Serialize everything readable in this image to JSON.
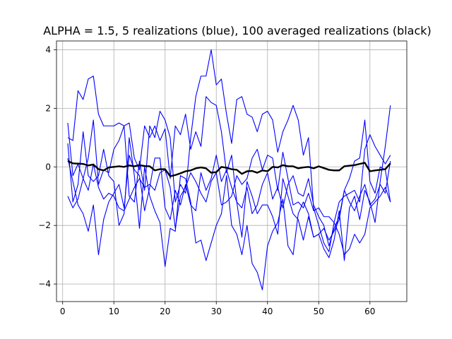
{
  "chart_data": {
    "type": "line",
    "title": "ALPHA = 1.5,    5 realizations (blue), 100 averaged realizations (black)",
    "xlabel": "",
    "ylabel": "",
    "xlim": [
      -1.2,
      67.2
    ],
    "ylim": [
      -4.6,
      4.3
    ],
    "xticks": [
      0,
      10,
      20,
      30,
      40,
      50,
      60
    ],
    "yticks": [
      -4,
      -2,
      0,
      2,
      4
    ],
    "grid": true,
    "legend": "none",
    "colors": {
      "realizations": "#0000ff",
      "average": "#000000",
      "grid": "#b0b0b0"
    },
    "x": [
      1,
      2,
      3,
      4,
      5,
      6,
      7,
      8,
      9,
      10,
      11,
      12,
      13,
      14,
      15,
      16,
      17,
      18,
      19,
      20,
      21,
      22,
      23,
      24,
      25,
      26,
      27,
      28,
      29,
      30,
      31,
      32,
      33,
      34,
      35,
      36,
      37,
      38,
      39,
      40,
      41,
      42,
      43,
      44,
      45,
      46,
      47,
      48,
      49,
      50,
      51,
      52,
      53,
      54,
      55,
      56,
      57,
      58,
      59,
      60,
      61,
      62,
      63,
      64
    ],
    "series": [
      {
        "role": "realization",
        "values": [
          1.5,
          -0.3,
          0.1,
          -0.4,
          0.3,
          1.6,
          -0.6,
          -0.1,
          -0.2,
          0.6,
          0.9,
          1.4,
          -1.0,
          -1.2,
          0.2,
          -0.8,
          1.4,
          1.0,
          1.9,
          1.6,
          1.0,
          -1.2,
          -0.6,
          -0.9,
          1.0,
          2.4,
          3.1,
          3.1,
          4.0,
          2.8,
          3.0,
          1.8,
          0.8,
          2.3,
          2.4,
          1.8,
          1.7,
          1.2,
          1.8,
          1.9,
          1.6,
          0.5,
          1.2,
          1.6,
          2.1,
          1.6,
          0.4,
          1.0,
          -1.4,
          -2.0,
          -2.6,
          -2.9,
          -1.9,
          -1.2,
          -1.0,
          -0.9,
          -0.8,
          -1.2,
          0.6,
          1.1,
          0.7,
          0.4,
          0.1,
          0.4
        ]
      },
      {
        "role": "realization",
        "values": [
          1.0,
          0.9,
          2.6,
          2.3,
          3.0,
          3.1,
          1.8,
          1.4,
          1.4,
          1.4,
          1.5,
          1.4,
          1.5,
          0.3,
          -0.1,
          1.4,
          1.0,
          1.4,
          0.9,
          1.3,
          -0.4,
          1.4,
          1.1,
          1.8,
          0.6,
          1.2,
          0.7,
          2.4,
          2.2,
          2.1,
          1.2,
          -0.2,
          0.4,
          -1.2,
          -1.4,
          -0.7,
          -1.6,
          -1.3,
          -0.6,
          -0.2,
          -1.1,
          -0.7,
          -1.4,
          -0.6,
          -0.3,
          -0.9,
          -1.0,
          -0.4,
          -1.3,
          -1.7,
          -2.0,
          -2.7,
          -2.1,
          -1.7,
          -0.8,
          -1.2,
          -1.5,
          -1.0,
          -0.6,
          -1.3,
          -1.1,
          -0.6,
          -0.9,
          0.2
        ]
      },
      {
        "role": "realization",
        "values": [
          -1.0,
          -1.4,
          -1.1,
          -0.4,
          -0.8,
          0.1,
          -0.7,
          -1.1,
          -0.9,
          -1.0,
          -1.4,
          -1.5,
          -1.1,
          -0.7,
          -0.4,
          -0.7,
          -0.6,
          -0.8,
          -0.2,
          -0.1,
          -0.7,
          -2.1,
          -1.0,
          -0.7,
          -0.2,
          -0.5,
          -0.9,
          -1.2,
          -0.5,
          -0.2,
          -1.3,
          -1.2,
          -1.0,
          -0.3,
          -0.6,
          -0.4,
          0.3,
          0.6,
          -0.1,
          0.4,
          0.3,
          -0.8,
          0.5,
          -0.4,
          -1.3,
          -1.2,
          -1.4,
          -0.9,
          -1.5,
          -1.4,
          -1.7,
          -1.7,
          -1.9,
          -2.3,
          -3.0,
          -2.8,
          -2.3,
          -2.6,
          -2.3,
          -1.4,
          -1.2,
          -1.0,
          -0.7,
          -1.2
        ]
      },
      {
        "role": "realization",
        "values": [
          0.8,
          -1.2,
          -0.6,
          1.2,
          -0.3,
          -0.5,
          -0.3,
          0.6,
          -0.3,
          -0.5,
          -2.0,
          -1.6,
          1.0,
          -0.3,
          -2.1,
          0.0,
          -1.0,
          -1.5,
          -1.9,
          -3.4,
          -2.1,
          -2.2,
          -0.3,
          -0.4,
          -1.2,
          -2.6,
          -2.5,
          -3.2,
          -2.6,
          -2.0,
          -1.6,
          -0.3,
          -2.0,
          -2.3,
          -3.0,
          -2.0,
          -3.3,
          -3.6,
          -4.2,
          -2.7,
          -2.2,
          -1.9,
          -1.1,
          -2.7,
          -3.0,
          -1.6,
          -1.2,
          -1.6,
          -2.4,
          -2.3,
          -2.8,
          -3.1,
          -2.5,
          -1.5,
          -3.2,
          -1.4,
          -1.0,
          -1.8,
          -0.8,
          -1.2,
          -1.9,
          -0.5,
          0.7,
          2.1
        ]
      },
      {
        "role": "realization",
        "values": [
          0.3,
          -0.5,
          -1.3,
          -1.6,
          -2.2,
          -1.3,
          -3.0,
          -1.8,
          -1.2,
          -0.9,
          -0.6,
          -1.4,
          0.4,
          -0.1,
          -0.3,
          -1.5,
          -0.7,
          0.3,
          0.3,
          -1.4,
          -1.8,
          -0.8,
          -1.3,
          -0.6,
          -1.3,
          -1.5,
          -0.2,
          -0.8,
          -0.4,
          0.4,
          -0.5,
          -0.1,
          -0.7,
          -1.2,
          -2.4,
          -0.5,
          -1.0,
          -1.6,
          -1.3,
          -1.3,
          -1.7,
          -2.3,
          -0.4,
          -1.0,
          -1.6,
          -1.8,
          -2.5,
          -1.7,
          -2.4,
          -2.3,
          -2.1,
          -2.5,
          -2.2,
          -1.8,
          -0.8,
          -0.4,
          0.2,
          0.3,
          1.6,
          -0.5,
          -0.9,
          0.0,
          -0.1,
          -1.2
        ]
      },
      {
        "role": "average",
        "values": [
          0.2,
          0.12,
          0.11,
          0.1,
          0.05,
          0.08,
          -0.08,
          -0.12,
          -0.02,
          0.0,
          0.02,
          0.0,
          0.05,
          0.02,
          0.06,
          0.03,
          0.02,
          -0.12,
          -0.08,
          -0.08,
          -0.32,
          -0.28,
          -0.22,
          -0.15,
          -0.12,
          -0.05,
          -0.02,
          -0.05,
          -0.2,
          -0.18,
          0.0,
          -0.03,
          -0.08,
          -0.1,
          -0.24,
          -0.15,
          -0.14,
          -0.2,
          -0.12,
          -0.15,
          0.0,
          -0.02,
          0.06,
          0.02,
          0.02,
          -0.05,
          -0.02,
          0.0,
          -0.05,
          0.02,
          -0.04,
          -0.1,
          -0.12,
          -0.12,
          0.02,
          0.04,
          0.06,
          0.1,
          0.14,
          -0.15,
          -0.12,
          -0.1,
          -0.08,
          0.12
        ]
      }
    ]
  }
}
